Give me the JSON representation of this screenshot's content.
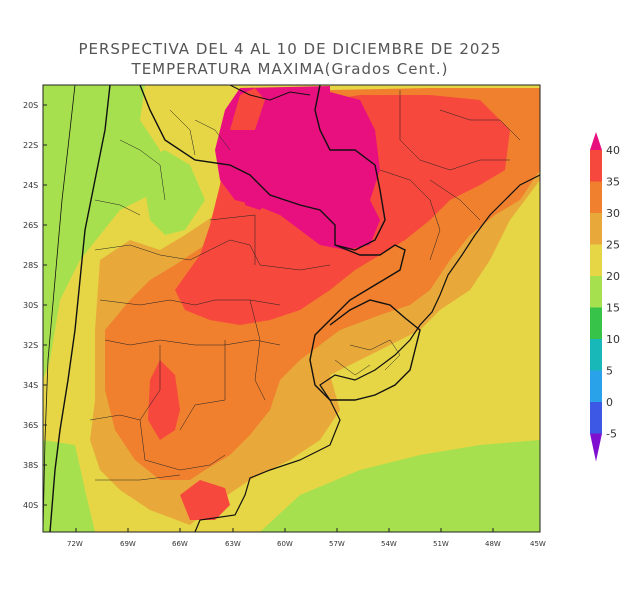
{
  "title_line1": "PERSPECTIVA DEL 4 AL 10 DE DICIEMBRE DE 2025",
  "title_line2": "TEMPERATURA MAXIMA(Grados Cent.)",
  "lat_labels": [
    "20S",
    "22S",
    "24S",
    "26S",
    "28S",
    "30S",
    "32S",
    "34S",
    "36S",
    "38S",
    "40S"
  ],
  "lon_labels": [
    "72W",
    "69W",
    "66W",
    "63W",
    "60W",
    "57W",
    "54W",
    "51W",
    "48W",
    "45W"
  ],
  "colorbar": {
    "labels": [
      "40",
      "35",
      "30",
      "25",
      "20",
      "15",
      "10",
      "5",
      "0",
      "-5"
    ],
    "colors": [
      "#e8107f",
      "#f6483c",
      "#f07f2e",
      "#e8a93a",
      "#e6d645",
      "#a6e04e",
      "#37c34a",
      "#19b8b8",
      "#2aa2ea",
      "#3d58e5",
      "#8010d0"
    ]
  }
}
